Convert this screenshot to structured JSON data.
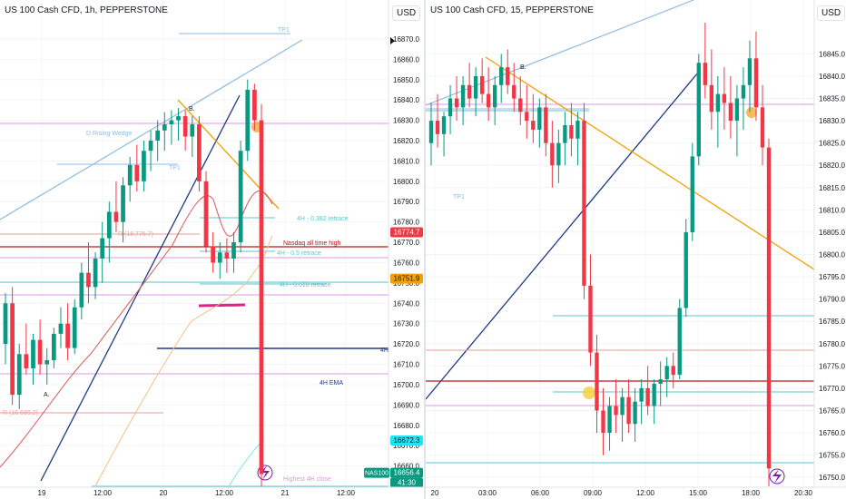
{
  "left": {
    "title": "US 100 Cash CFD, 1h, PEPPERSTONE",
    "currency": "USD",
    "price_ticks": [
      "16870.0",
      "16860.0",
      "16850.0",
      "16840.0",
      "16830.0",
      "16820.0",
      "16810.0",
      "16800.0",
      "16790.0",
      "16780.0",
      "16770.0",
      "16760.0",
      "16750.0",
      "16740.0",
      "16730.0",
      "16720.0",
      "16710.0",
      "16700.0",
      "16690.0",
      "16680.0",
      "16670.0",
      "16660.0"
    ],
    "time_ticks": [
      "19",
      "12:00",
      "20",
      "12:00",
      "21",
      "12:00"
    ],
    "badges": {
      "ath": {
        "text": "16774.7",
        "color": "#f23645"
      },
      "orange": {
        "text": "16751.9",
        "color": "#f59f00"
      },
      "cyan": {
        "text": "16672.3",
        "color": "#22e3ef"
      },
      "symbol": {
        "text": "NAS100",
        "color": "#089981"
      },
      "last": {
        "text": "16656.4",
        "color": "#089981"
      },
      "countdown": {
        "text": "41:30",
        "color": "#089981"
      }
    },
    "labels": {
      "tp1_top": "TP1",
      "rising_wedge": "D Rising Wedge",
      "tp1_mid": "TP1",
      "b": "B.",
      "a": "A.",
      "fib382": "4H - 0.382 retrace",
      "ath": "Nasdaq all time high",
      "fib5": "4H - 0.5 retrace",
      "fib618": "4H - 0.618 retrace",
      "r_775": "R (16,775.7)",
      "r_689": "R (16,689.2)",
      "h4": "4H",
      "ema": "4H EMA",
      "highest": "Highest 4H close"
    },
    "chart_data": {
      "type": "candlestick",
      "y_range": [
        16650,
        16878
      ],
      "candles": [
        [
          16720,
          16745,
          16710,
          16740
        ],
        [
          16740,
          16748,
          16690,
          16695
        ],
        [
          16695,
          16720,
          16688,
          16715
        ],
        [
          16715,
          16730,
          16705,
          16708
        ],
        [
          16708,
          16725,
          16700,
          16722
        ],
        [
          16722,
          16732,
          16705,
          16710
        ],
        [
          16710,
          16718,
          16700,
          16712
        ],
        [
          16712,
          16728,
          16708,
          16725
        ],
        [
          16725,
          16738,
          16718,
          16730
        ],
        [
          16730,
          16740,
          16712,
          16718
        ],
        [
          16718,
          16742,
          16715,
          16738
        ],
        [
          16738,
          16760,
          16732,
          16755
        ],
        [
          16755,
          16770,
          16740,
          16748
        ],
        [
          16748,
          16765,
          16742,
          16762
        ],
        [
          16762,
          16780,
          16750,
          16772
        ],
        [
          16772,
          16790,
          16760,
          16785
        ],
        [
          16785,
          16800,
          16775,
          16780
        ],
        [
          16780,
          16802,
          16770,
          16798
        ],
        [
          16798,
          16812,
          16790,
          16808
        ],
        [
          16808,
          16818,
          16795,
          16800
        ],
        [
          16800,
          16820,
          16795,
          16815
        ],
        [
          16815,
          16825,
          16805,
          16820
        ],
        [
          16820,
          16830,
          16810,
          16825
        ],
        [
          16825,
          16834,
          16815,
          16828
        ],
        [
          16828,
          16835,
          16818,
          16830
        ],
        [
          16830,
          16836,
          16820,
          16832
        ],
        [
          16832,
          16835,
          16815,
          16822
        ],
        [
          16822,
          16832,
          16812,
          16828
        ],
        [
          16828,
          16832,
          16795,
          16800
        ],
        [
          16800,
          16805,
          16765,
          16768
        ],
        [
          16768,
          16775,
          16755,
          16760
        ],
        [
          16760,
          16770,
          16752,
          16765
        ],
        [
          16765,
          16772,
          16755,
          16762
        ],
        [
          16762,
          16775,
          16755,
          16770
        ],
        [
          16770,
          16820,
          16765,
          16815
        ],
        [
          16815,
          16850,
          16810,
          16845
        ],
        [
          16845,
          16848,
          16825,
          16830
        ],
        [
          16830,
          16838,
          16650,
          16656
        ]
      ]
    }
  },
  "right": {
    "title": "US 100 Cash CFD, 15, PEPPERSTONE",
    "currency": "USD",
    "price_ticks": [
      "16845.0",
      "16840.0",
      "16835.0",
      "16830.0",
      "16825.0",
      "16820.0",
      "16815.0",
      "16810.0",
      "16805.0",
      "16800.0",
      "16795.0",
      "16790.0",
      "16785.0",
      "16780.0",
      "16775.0",
      "16770.0",
      "16765.0",
      "16760.0",
      "16755.0",
      "16750.0"
    ],
    "time_ticks": [
      "20",
      "03:00",
      "06:00",
      "09:00",
      "12:00",
      "15:00",
      "18:00",
      "20:30"
    ],
    "labels": {
      "tp1": "TP1",
      "b": "B."
    },
    "chart_data": {
      "type": "candlestick",
      "y_range": [
        16748,
        16852
      ],
      "candles": [
        [
          16825,
          16834,
          16820,
          16830
        ],
        [
          16830,
          16836,
          16824,
          16827
        ],
        [
          16827,
          16832,
          16822,
          16831
        ],
        [
          16831,
          16838,
          16827,
          16835
        ],
        [
          16835,
          16840,
          16830,
          16833
        ],
        [
          16833,
          16840,
          16829,
          16838
        ],
        [
          16838,
          16843,
          16833,
          16835
        ],
        [
          16835,
          16842,
          16831,
          16840
        ],
        [
          16840,
          16844,
          16834,
          16836
        ],
        [
          16836,
          16842,
          16830,
          16833
        ],
        [
          16833,
          16840,
          16829,
          16838
        ],
        [
          16838,
          16845,
          16834,
          16842
        ],
        [
          16842,
          16846,
          16836,
          16838
        ],
        [
          16838,
          16843,
          16832,
          16835
        ],
        [
          16835,
          16840,
          16829,
          16832
        ],
        [
          16832,
          16838,
          16826,
          16830
        ],
        [
          16830,
          16836,
          16825,
          16828
        ],
        [
          16828,
          16835,
          16824,
          16833
        ],
        [
          16833,
          16836,
          16822,
          16825
        ],
        [
          16825,
          16830,
          16815,
          16820
        ],
        [
          16820,
          16828,
          16816,
          16825
        ],
        [
          16825,
          16832,
          16820,
          16829
        ],
        [
          16829,
          16834,
          16822,
          16826
        ],
        [
          16826,
          16832,
          16820,
          16830
        ],
        [
          16830,
          16834,
          16790,
          16793
        ],
        [
          16793,
          16800,
          16775,
          16778
        ],
        [
          16778,
          16782,
          16760,
          16765
        ],
        [
          16765,
          16770,
          16755,
          16760
        ],
        [
          16760,
          16768,
          16756,
          16766
        ],
        [
          16766,
          16772,
          16760,
          16764
        ],
        [
          16764,
          16770,
          16758,
          16768
        ],
        [
          16768,
          16772,
          16760,
          16762
        ],
        [
          16762,
          16770,
          16758,
          16767
        ],
        [
          16767,
          16772,
          16762,
          16770
        ],
        [
          16770,
          16775,
          16764,
          16766
        ],
        [
          16766,
          16772,
          16762,
          16771
        ],
        [
          16771,
          16776,
          16766,
          16772
        ],
        [
          16772,
          16777,
          16768,
          16775
        ],
        [
          16775,
          16778,
          16770,
          16773
        ],
        [
          16773,
          16790,
          16772,
          16788
        ],
        [
          16788,
          16808,
          16786,
          16805
        ],
        [
          16805,
          16825,
          16803,
          16822
        ],
        [
          16822,
          16845,
          16820,
          16843
        ],
        [
          16843,
          16852,
          16835,
          16838
        ],
        [
          16838,
          16846,
          16828,
          16832
        ],
        [
          16832,
          16840,
          16824,
          16836
        ],
        [
          16836,
          16842,
          16828,
          16834
        ],
        [
          16834,
          16840,
          16826,
          16830
        ],
        [
          16830,
          16838,
          16822,
          16835
        ],
        [
          16835,
          16842,
          16828,
          16838
        ],
        [
          16838,
          16848,
          16832,
          16844
        ],
        [
          16844,
          16850,
          16830,
          16833
        ],
        [
          16833,
          16838,
          16820,
          16824
        ],
        [
          16824,
          16826,
          16748,
          16752
        ]
      ]
    }
  }
}
